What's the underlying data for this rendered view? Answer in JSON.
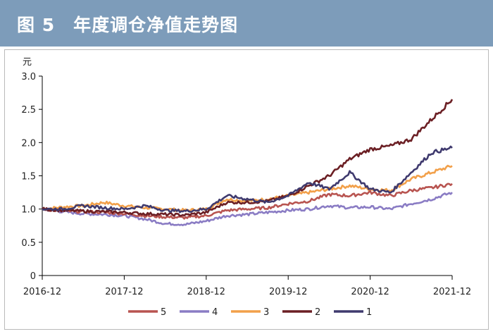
{
  "title": "图 5　年度调仓净值走势图",
  "chart_data": {
    "type": "line",
    "title": "图 5　年度调仓净值走势图",
    "ylabel": "元",
    "xlabel": "",
    "ylim": [
      0,
      3.0
    ],
    "yticks": [
      "0",
      "0.5",
      "1.0",
      "1.5",
      "2.0",
      "2.5",
      "3.0"
    ],
    "ytick_values": [
      0,
      0.5,
      1.0,
      1.5,
      2.0,
      2.5,
      3.0
    ],
    "x_ticks": [
      "2016-12",
      "2017-12",
      "2018-12",
      "2019-12",
      "2020-12",
      "2021-12"
    ],
    "x_tick_values": [
      0,
      12,
      24,
      36,
      48,
      60
    ],
    "legend_position": "bottom",
    "series": [
      {
        "name": "5",
        "color": "#b85450",
        "x": [
          0,
          3,
          6,
          9,
          12,
          15,
          18,
          21,
          24,
          27,
          30,
          33,
          36,
          39,
          42,
          45,
          48,
          51,
          54,
          57,
          60
        ],
        "values": [
          1.0,
          0.97,
          0.96,
          0.95,
          0.93,
          0.9,
          0.88,
          0.87,
          0.9,
          0.98,
          1.0,
          1.02,
          1.08,
          1.12,
          1.22,
          1.2,
          1.25,
          1.2,
          1.28,
          1.32,
          1.38
        ]
      },
      {
        "name": "4",
        "color": "#8a7cc4",
        "x": [
          0,
          3,
          6,
          9,
          12,
          15,
          18,
          21,
          24,
          27,
          30,
          33,
          36,
          39,
          42,
          45,
          48,
          51,
          54,
          57,
          60
        ],
        "values": [
          1.0,
          0.96,
          0.93,
          0.92,
          0.9,
          0.85,
          0.78,
          0.77,
          0.82,
          0.9,
          0.92,
          0.95,
          0.98,
          1.0,
          1.05,
          1.02,
          1.03,
          1.0,
          1.08,
          1.15,
          1.25
        ]
      },
      {
        "name": "3",
        "color": "#f2a04a",
        "x": [
          0,
          3,
          6,
          9,
          12,
          15,
          18,
          21,
          24,
          27,
          30,
          33,
          36,
          39,
          42,
          45,
          48,
          51,
          54,
          57,
          60
        ],
        "values": [
          1.0,
          1.03,
          1.05,
          1.1,
          1.05,
          1.02,
          1.0,
          0.98,
          1.0,
          1.15,
          1.12,
          1.15,
          1.2,
          1.25,
          1.3,
          1.35,
          1.3,
          1.28,
          1.45,
          1.55,
          1.65
        ]
      },
      {
        "name": "2",
        "color": "#6b1f24",
        "x": [
          0,
          3,
          6,
          9,
          12,
          15,
          18,
          21,
          24,
          27,
          30,
          33,
          36,
          39,
          42,
          45,
          48,
          51,
          54,
          57,
          60
        ],
        "values": [
          1.0,
          0.98,
          0.97,
          0.96,
          0.95,
          0.93,
          0.92,
          0.91,
          0.95,
          1.1,
          1.1,
          1.12,
          1.2,
          1.35,
          1.5,
          1.75,
          1.9,
          1.95,
          2.05,
          2.35,
          2.65
        ]
      },
      {
        "name": "1",
        "color": "#3f3a6e",
        "x": [
          0,
          3,
          6,
          9,
          12,
          15,
          18,
          21,
          24,
          27,
          30,
          33,
          36,
          39,
          42,
          45,
          48,
          51,
          54,
          57,
          60
        ],
        "values": [
          1.0,
          1.0,
          1.05,
          1.02,
          1.0,
          1.05,
          0.98,
          0.97,
          1.0,
          1.2,
          1.15,
          1.1,
          1.2,
          1.4,
          1.3,
          1.55,
          1.3,
          1.25,
          1.55,
          1.85,
          1.92
        ]
      }
    ],
    "legend_order": [
      "5",
      "4",
      "3",
      "2",
      "1"
    ]
  }
}
